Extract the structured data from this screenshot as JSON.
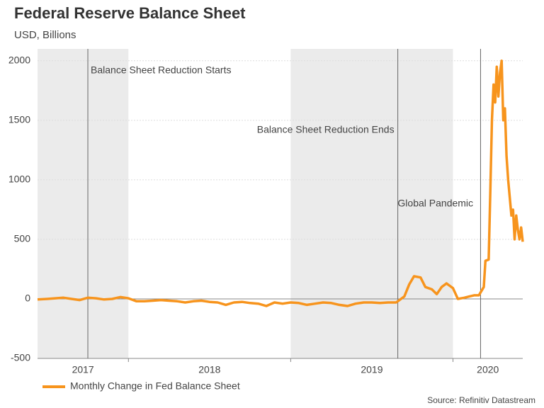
{
  "chart_data": {
    "type": "line",
    "title": "Federal Reserve Balance Sheet",
    "subtitle": "USD, Billions",
    "source": "Source: Refinitiv Datastream",
    "xlim": [
      2017.44,
      2020.43
    ],
    "ylim": [
      -500,
      2100
    ],
    "yticks": [
      -500,
      0,
      500,
      1000,
      1500,
      2000
    ],
    "xticks": [
      {
        "value": 2017,
        "label": "2017"
      },
      {
        "value": 2018,
        "label": "2018"
      },
      {
        "value": 2019,
        "label": "2019"
      },
      {
        "value": 2020,
        "label": "2020"
      }
    ],
    "grid": true,
    "shaded": [
      [
        2017,
        2018
      ],
      [
        2019,
        2020
      ]
    ],
    "vlines": [
      2017.75,
      2019.66,
      2020.17
    ],
    "annotations": [
      "Balance Sheet Reduction Starts",
      "Balance Sheet Reduction Ends",
      "Global Pandemic"
    ],
    "x": [
      2017.44,
      2017.5,
      2017.55,
      2017.6,
      2017.65,
      2017.7,
      2017.75,
      2017.8,
      2017.85,
      2017.9,
      2017.95,
      2018.0,
      2018.05,
      2018.1,
      2018.15,
      2018.2,
      2018.25,
      2018.3,
      2018.35,
      2018.4,
      2018.45,
      2018.5,
      2018.55,
      2018.6,
      2018.65,
      2018.7,
      2018.75,
      2018.8,
      2018.85,
      2018.9,
      2018.95,
      2019.0,
      2019.05,
      2019.1,
      2019.15,
      2019.2,
      2019.25,
      2019.3,
      2019.35,
      2019.4,
      2019.45,
      2019.5,
      2019.55,
      2019.6,
      2019.65,
      2019.7,
      2019.73,
      2019.76,
      2019.8,
      2019.83,
      2019.87,
      2019.9,
      2019.93,
      2019.96,
      2020.0,
      2020.03,
      2020.07,
      2020.1,
      2020.13,
      2020.16,
      2020.19,
      2020.2,
      2020.22,
      2020.23,
      2020.24,
      2020.25,
      2020.26,
      2020.27,
      2020.28,
      2020.29,
      2020.3,
      2020.31,
      2020.32,
      2020.33,
      2020.34,
      2020.36,
      2020.37,
      2020.38,
      2020.39,
      2020.4,
      2020.41,
      2020.42,
      2020.43
    ],
    "series": [
      {
        "name": "Monthly Change in Fed Balance Sheet",
        "color": "#f7941d",
        "values": [
          -5,
          0,
          5,
          10,
          0,
          -10,
          10,
          5,
          -5,
          0,
          15,
          5,
          -20,
          -20,
          -15,
          -10,
          -15,
          -20,
          -30,
          -20,
          -15,
          -25,
          -30,
          -50,
          -30,
          -25,
          -35,
          -40,
          -60,
          -30,
          -40,
          -30,
          -35,
          -50,
          -40,
          -30,
          -35,
          -50,
          -60,
          -40,
          -30,
          -30,
          -35,
          -30,
          -30,
          20,
          120,
          190,
          180,
          100,
          80,
          40,
          100,
          130,
          90,
          0,
          10,
          20,
          30,
          30,
          100,
          320,
          330,
          900,
          1500,
          1800,
          1650,
          1950,
          1700,
          1900,
          2000,
          1500,
          1600,
          1200,
          1000,
          700,
          750,
          500,
          700,
          580,
          500,
          600,
          480
        ]
      }
    ]
  }
}
